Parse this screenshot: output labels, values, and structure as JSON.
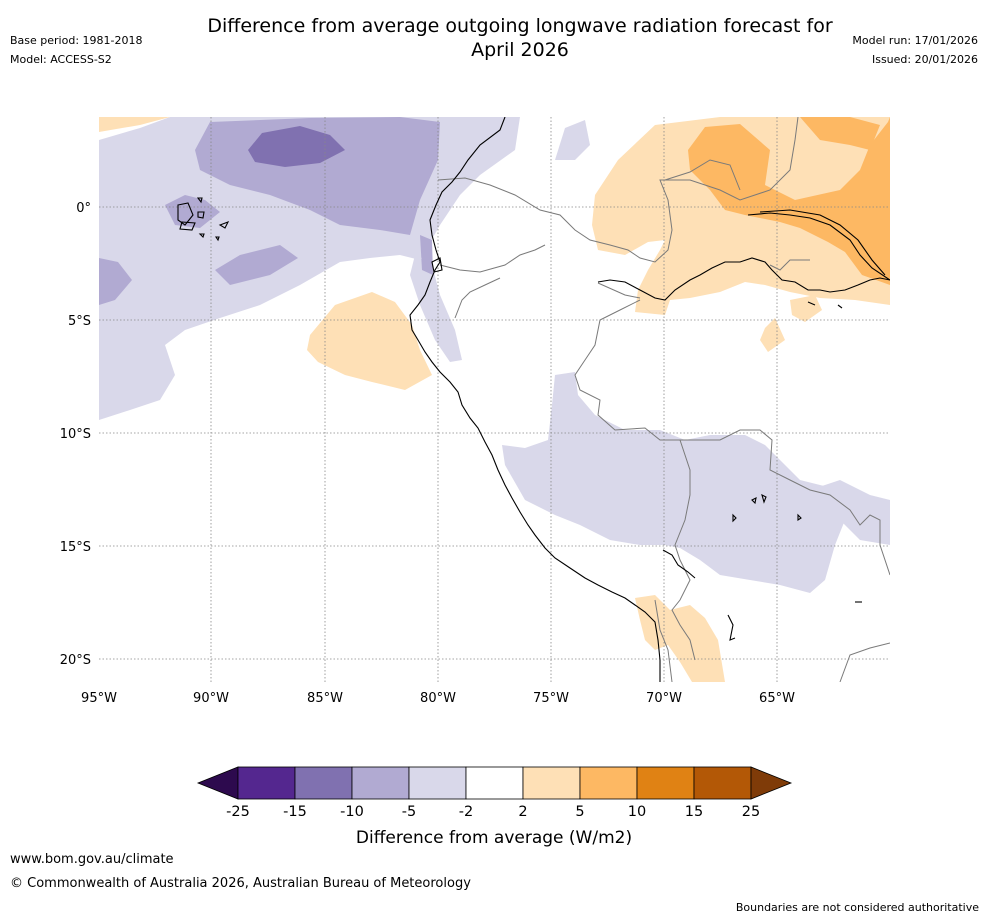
{
  "header": {
    "title_line1": "Difference from average outgoing longwave radiation forecast for",
    "title_line2": "April 2026",
    "base_period": "Base period: 1981-2018",
    "model": "Model: ACCESS-S2",
    "model_run": "Model run: 17/01/2026",
    "issued": "Issued: 20/01/2026"
  },
  "map": {
    "lon_ticks": [
      "95°W",
      "90°W",
      "85°W",
      "80°W",
      "75°W",
      "70°W",
      "65°W"
    ],
    "lat_ticks": [
      "0°",
      "5°S",
      "10°S",
      "15°S",
      "20°S"
    ],
    "colors": {
      "neg25": "#2d0a4e",
      "neg15": "#54278f",
      "neg10": "#8071b0",
      "neg5": "#b1aad2",
      "neg2": "#d9d8ea",
      "zero": "#ffffff",
      "pos2": "#fee0b6",
      "pos5": "#fdb863",
      "pos10": "#e08214",
      "pos15": "#b35806",
      "pos25": "#7f3b08",
      "coast": "#000000",
      "border": "#7a7a7a",
      "grid": "#888888"
    }
  },
  "colorbar": {
    "labels": [
      "-25",
      "-15",
      "-10",
      "-5",
      "-2",
      "2",
      "5",
      "10",
      "15",
      "25"
    ],
    "title": "Difference from average (W/m2)"
  },
  "footer": {
    "url": "www.bom.gov.au/climate",
    "copyright": "© Commonwealth of Australia 2026, Australian Bureau of Meteorology",
    "disclaimer": "Boundaries are not considered authoritative"
  }
}
